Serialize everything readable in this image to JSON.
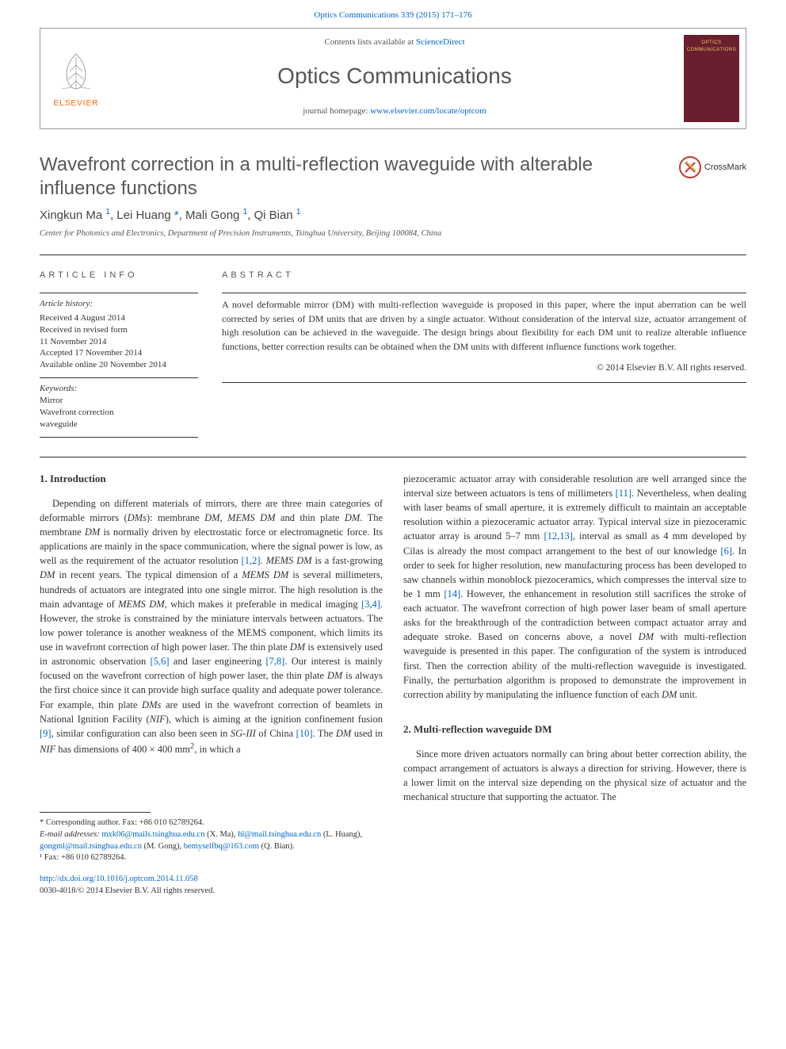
{
  "top_link": {
    "journal_citation": "Optics Communications 339 (2015) 171–176"
  },
  "header": {
    "elsevier_label": "ELSEVIER",
    "contents_prefix": "Contents lists available at ",
    "contents_link": "ScienceDirect",
    "journal_name": "Optics Communications",
    "homepage_prefix": "journal homepage: ",
    "homepage_link": "www.elsevier.com/locate/optcom",
    "cover_label": "OPTICS COMMUNICATIONS"
  },
  "title": "Wavefront correction in a multi-reflection waveguide with alterable influence functions",
  "crossmark_label": "CrossMark",
  "authors_html": "Xingkun Ma <sup>1</sup>, Lei Huang <a>*</a>, Mali Gong <sup>1</sup>, Qi Bian <sup>1</sup>",
  "affiliation": "Center for Photonics and Electronics, Department of Precision Instruments, Tsinghua University, Beijing 100084, China",
  "info": {
    "section_label": "ARTICLE INFO",
    "history_label": "Article history:",
    "history": [
      "Received 4 August 2014",
      "Received in revised form",
      "11 November 2014",
      "Accepted 17 November 2014",
      "Available online 20 November 2014"
    ],
    "keywords_label": "Keywords:",
    "keywords": [
      "Mirror",
      "Wavefront correction",
      "waveguide"
    ]
  },
  "abstract": {
    "section_label": "ABSTRACT",
    "text": "A novel deformable mirror (DM) with multi-reflection waveguide is proposed in this paper, where the input aberration can be well corrected by series of DM units that are driven by a single actuator. Without consideration of the interval size, actuator arrangement of high resolution can be achieved in the waveguide. The design brings about flexibility for each DM unit to realize alterable influence functions, better correction results can be obtained when the DM units with different influence functions work together.",
    "copyright": "© 2014 Elsevier B.V. All rights reserved."
  },
  "section1": {
    "heading": "1.  Introduction",
    "para_left": "Depending on different materials of mirrors, there are three main categories of deformable mirrors (<em>DMs</em>): membrane <em>DM</em>, <em>MEMS DM</em> and thin plate <em>DM</em>. The membrane <em>DM</em> is normally driven by electrostatic force or electromagnetic force. Its applications are mainly in the space communication, where the signal power is low, as well as the requirement of the actuator resolution <a>[1,2]</a>. <em>MEMS DM</em> is a fast-growing <em>DM</em> in recent years. The typical dimension of a <em>MEMS DM</em> is several millimeters, hundreds of actuators are integrated into one single mirror. The high resolution is the main advantage of <em>MEMS DM</em>, which makes it preferable in medical imaging <a>[3,4]</a>. However, the stroke is constrained by the miniature intervals between actuators. The low power tolerance is another weakness of the MEMS component, which limits its use in wavefront correction of high power laser. The thin plate <em>DM</em> is extensively used in astronomic observation <a>[5,6]</a> and laser engineering <a>[7,8]</a>. Our interest is mainly focused on the wavefront correction of high power laser, the thin plate <em>DM</em> is always the first choice since it can provide high surface quality and adequate power tolerance. For example, thin plate <em>DMs</em> are used in the wavefront correction of beamlets in National Ignition Facility (<em>NIF</em>), which is aiming at the ignition confinement fusion <a>[9]</a>, similar configuration can also been seen in <em>SG-III</em> of China <a>[10]</a>. The <em>DM</em> used in <em>NIF</em> has dimensions of 400 × 400 mm<sup>2</sup>, in which a",
    "para_right": "piezoceramic actuator array with considerable resolution are well arranged since the interval size between actuators is tens of millimeters <a>[11]</a>. Nevertheless, when dealing with laser beams of small aperture, it is extremely difficult to maintain an acceptable resolution within a piezoceramic actuator array. Typical interval size in piezoceramic actuator array is around 5–7 mm <a>[12,13]</a>, interval as small as 4 mm developed by Cilas is already the most compact arrangement to the best of our knowledge <a>[6]</a>. In order to seek for higher resolution, new manufacturing process has been developed to saw channels within monoblock piezoceramics, which compresses the interval size to be 1 mm <a>[14]</a>. However, the enhancement in resolution still sacrifices the stroke of each actuator. The wavefront correction of high power laser beam of small aperture asks for the breakthrough of the contradiction between compact actuator array and adequate stroke. Based on concerns above, a novel <em>DM</em> with multi-reflection waveguide is presented in this paper. The configuration of the system is introduced first. Then the correction ability of the multi-reflection waveguide is investigated. Finally, the perturbation algorithm is proposed to demonstrate the improvement in correction ability by manipulating the influence function of each <em>DM</em> unit."
  },
  "section2": {
    "heading": "2.  Multi-reflection waveguide DM",
    "para": "Since more driven actuators normally can bring about better correction ability, the compact arrangement of actuators is always a direction for striving. However, there is a lower limit on the interval size depending on the physical size of actuator and the mechanical structure that supporting the actuator. The"
  },
  "footnotes": {
    "corr": "* Corresponding author. Fax: +86 010 62789264.",
    "email_label": "E-mail addresses: ",
    "emails_html": "<a>mxk06@mails.tsinghua.edu.cn</a> (X. Ma), <a>hl@mail.tsinghua.edu.cn</a> (L. Huang), <a>gongml@mail.tsinghua.edu.cn</a> (M. Gong), <a>bemyselfbq@163.com</a> (Q. Bian).",
    "fn1": "¹ Fax: +86 010 62789264."
  },
  "doi": {
    "link": "http://dx.doi.org/10.1016/j.optcom.2014.11.058",
    "issn_line": "0030-4018/© 2014 Elsevier B.V. All rights reserved."
  },
  "colors": {
    "link": "#0066cc",
    "elsevier_orange": "#ff6600",
    "cover_bg": "#6b1f2e",
    "cover_text": "#e8c56a",
    "crossmark_ring": "#c0392b"
  }
}
